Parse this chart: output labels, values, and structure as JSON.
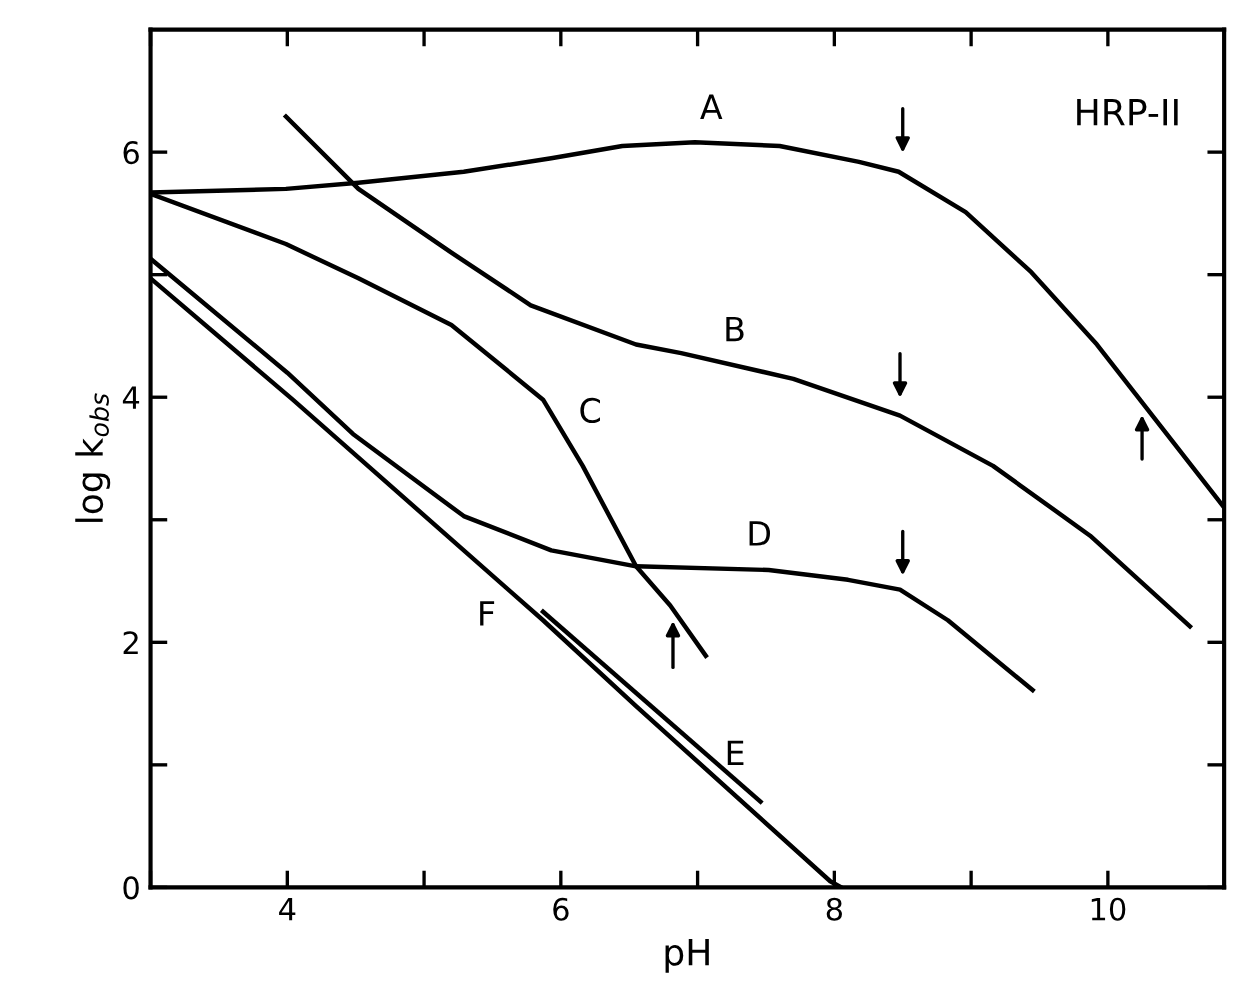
{
  "chart_data": {
    "type": "line",
    "xlabel": "pH",
    "ylabel": "log k$_{obs}$",
    "xlim": [
      3,
      10.85
    ],
    "ylim": [
      0,
      7
    ],
    "xticks": [
      {
        "value": 3,
        "label": null
      },
      4,
      {
        "value": 5,
        "label": null
      },
      6,
      {
        "value": 7,
        "label": null
      },
      8,
      {
        "value": 9,
        "label": null
      },
      10
    ],
    "yticks": [
      0,
      {
        "value": 1,
        "label": null
      },
      2,
      {
        "value": 3,
        "label": null
      },
      4,
      {
        "value": 5,
        "label": null
      },
      6
    ],
    "grid": false,
    "legend": false,
    "marker": "none",
    "line_style": "solid",
    "series": [
      {
        "name": "A",
        "color": "#000000",
        "x": [
          3.0,
          3.99,
          4.52,
          5.29,
          5.93,
          6.45,
          6.98,
          7.6,
          8.18,
          8.47,
          8.96,
          9.44,
          9.92,
          10.2,
          10.85
        ],
        "values": [
          5.67,
          5.7,
          5.75,
          5.84,
          5.95,
          6.05,
          6.08,
          6.05,
          5.92,
          5.84,
          5.51,
          5.02,
          4.43,
          4.03,
          3.1
        ]
      },
      {
        "name": "B",
        "color": "#000000",
        "x": [
          3.99,
          4.52,
          5.2,
          5.78,
          6.55,
          6.88,
          7.7,
          8.48,
          9.16,
          9.87,
          10.6
        ],
        "values": [
          6.29,
          5.7,
          5.18,
          4.75,
          4.43,
          4.36,
          4.15,
          3.85,
          3.44,
          2.87,
          2.13
        ]
      },
      {
        "name": "C",
        "color": "#000000",
        "x": [
          3.0,
          3.99,
          4.52,
          5.2,
          5.87,
          6.16,
          6.55,
          6.8,
          7.06
        ],
        "values": [
          5.66,
          5.25,
          4.97,
          4.59,
          3.98,
          3.44,
          2.62,
          2.3,
          1.89
        ]
      },
      {
        "name": "D",
        "color": "#000000",
        "x": [
          3.0,
          4.0,
          4.48,
          5.29,
          5.93,
          6.55,
          7.52,
          8.1,
          8.48,
          8.83,
          9.45
        ],
        "values": [
          5.13,
          4.2,
          3.7,
          3.03,
          2.75,
          2.62,
          2.59,
          2.51,
          2.43,
          2.18,
          1.61
        ]
      },
      {
        "name": "E",
        "color": "#000000",
        "x": [
          5.87,
          7.46
        ],
        "values": [
          2.25,
          0.7
        ]
      },
      {
        "name": "F",
        "color": "#000000",
        "x": [
          3.0,
          4.04,
          5.87,
          6.55,
          7.97,
          8.05
        ],
        "values": [
          4.97,
          3.98,
          2.18,
          1.48,
          0.05,
          0.0
        ]
      }
    ],
    "annotations": [
      "HRP-II"
    ]
  }
}
